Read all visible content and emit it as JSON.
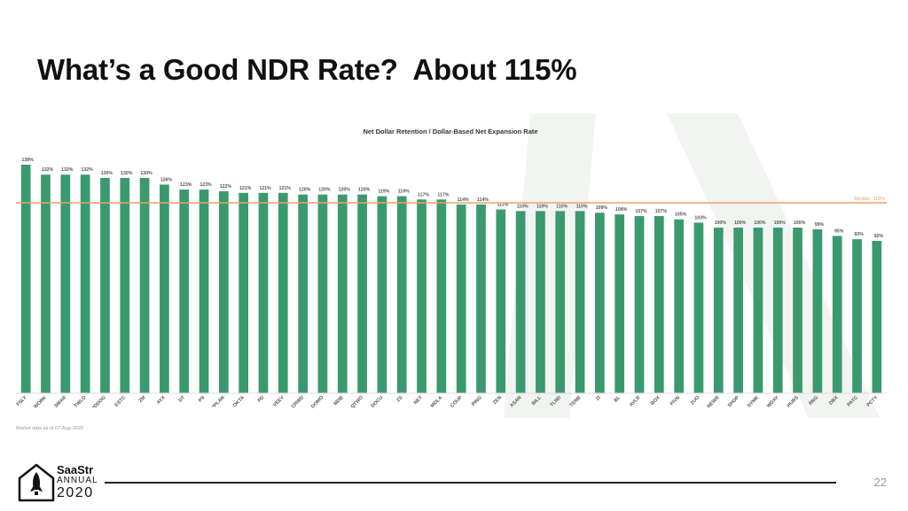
{
  "slide": {
    "title": "What’s a Good NDR Rate?  About 115%",
    "page_number": "22",
    "logo": {
      "title": "SaaStr",
      "subtitle": "ANNUAL",
      "year": "2020"
    },
    "colors": {
      "bar": "#3a9a6e",
      "median_line": "#f0a06a",
      "watermark": "#f2f4f2"
    }
  },
  "chart_data": {
    "type": "bar",
    "title": "Net Dollar Retention / Dollar-Based Net Expansion Rate",
    "footnote": "Market data as of 07-Aug-2020",
    "categories": [
      "FSLY",
      "WORK",
      "SMAR",
      "TWLO",
      "*DDOG",
      "ESTC",
      "ZM",
      "AYX",
      "DT",
      "PS",
      "*PLAN",
      "OKTA",
      "PD",
      "VEEV",
      "CRWD",
      "DOMO",
      "MDB",
      "QTWO",
      "DOCU",
      "ZS",
      "NET",
      "MDLA",
      "COUP",
      "PING",
      "ZEN",
      "ASAN",
      "BILL",
      "TLND",
      "TENB",
      "ZI",
      "BL",
      "AVLR",
      "BOX",
      "FIVN",
      "ZUO",
      "NEWR",
      "SHOP",
      "SVMK",
      "WDAY",
      "HUBS",
      "RNG",
      "DBX",
      "PAYC",
      "PCTY"
    ],
    "values": [
      138,
      132,
      132,
      132,
      130,
      130,
      130,
      126,
      123,
      123,
      122,
      121,
      121,
      121,
      120,
      120,
      120,
      120,
      119,
      119,
      117,
      117,
      114,
      114,
      111,
      110,
      110,
      110,
      110,
      109,
      108,
      107,
      107,
      105,
      103,
      100,
      100,
      100,
      100,
      100,
      99,
      95,
      93,
      92
    ],
    "value_labels": [
      "138%",
      "132%",
      "132%",
      "132%",
      "130%",
      "130%",
      "130%",
      "126%",
      "123%",
      "123%",
      "122%",
      "121%",
      "121%",
      "121%",
      "120%",
      "120%",
      "120%",
      "120%",
      "119%",
      "119%",
      "117%",
      "117%",
      "114%",
      "114%",
      "111%",
      "110%",
      "110%",
      "110%",
      "110%",
      "109%",
      "108%",
      "107%",
      "107%",
      "105%",
      "103%",
      "100%",
      "100%",
      "100%",
      "100%",
      "100%",
      "99%",
      "95%",
      "93%",
      "92%"
    ],
    "median": {
      "value": 115,
      "label": "Median: 115%"
    },
    "ylim": [
      0,
      138
    ],
    "grid": false,
    "legend": "none"
  }
}
